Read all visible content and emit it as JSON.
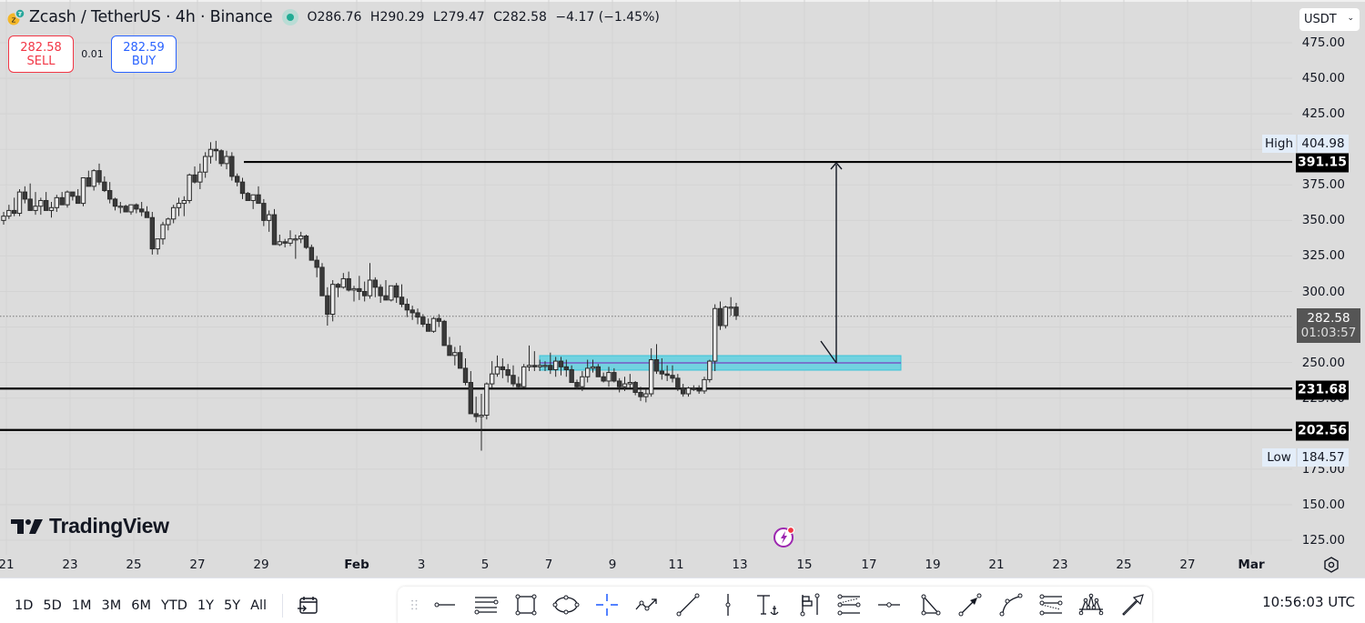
{
  "header": {
    "symbol_title": "Zcash / TetherUS · 4h · Binance",
    "ohlc": {
      "open": "O286.76",
      "high": "H290.29",
      "low": "L279.47",
      "close": "C282.58",
      "change": "−4.17 (−1.45%)"
    },
    "status_color": "#22ab94"
  },
  "trade": {
    "sell_price": "282.58",
    "sell_label": "SELL",
    "spread": "0.01",
    "buy_price": "282.59",
    "buy_label": "BUY",
    "sell_color": "#f23645",
    "buy_color": "#2962ff"
  },
  "price_axis": {
    "currency": "USDT",
    "ticks": [
      "475.00",
      "450.00",
      "425.00",
      "375.00",
      "350.00",
      "325.00",
      "300.00",
      "250.00",
      "225.00",
      "175.00",
      "150.00",
      "125.00"
    ],
    "high_label": "High",
    "high_value": "404.98",
    "low_label": "Low",
    "low_value": "184.57",
    "current_price": "282.58",
    "countdown": "01:03:57",
    "horizontal_lines": [
      "391.15",
      "231.68",
      "202.56"
    ]
  },
  "time_axis": {
    "labels": [
      "21",
      "23",
      "25",
      "27",
      "29",
      "Feb",
      "3",
      "5",
      "7",
      "9",
      "11",
      "13",
      "15",
      "17",
      "19",
      "21",
      "23",
      "25",
      "27",
      "Mar"
    ]
  },
  "watermark": "TradingView",
  "bottom_bar": {
    "ranges": [
      "1D",
      "5D",
      "1M",
      "3M",
      "6M",
      "YTD",
      "1Y",
      "5Y",
      "All"
    ],
    "clock": "10:56:03 UTC"
  },
  "drawing_tools": [
    "drag-handle",
    "horizontal-ray",
    "parallel-channel",
    "rectangle",
    "ellipse",
    "crosshair",
    "path",
    "trend-line",
    "vertical-line",
    "anchored-text",
    "flag-pin",
    "pin-line",
    "regression-trend",
    "horizontal-point",
    "triangle",
    "arrow-marker",
    "curve",
    "pitchfork-channel",
    "elliott-wave",
    "arrow"
  ],
  "chart_data": {
    "type": "candlestick",
    "title": "Zcash / TetherUS · 4h · Binance",
    "ylim": [
      125,
      475
    ],
    "annotations": {
      "resistance_line": 391.15,
      "support_line_1": 231.68,
      "support_line_2": 202.56,
      "demand_zone": [
        244,
        254
      ],
      "target_arrow_from": 250,
      "target_arrow_to": 391.15
    },
    "candles_ohlc": [
      [
        350,
        356,
        347,
        353
      ],
      [
        353,
        361,
        351,
        357
      ],
      [
        357,
        366,
        353,
        355
      ],
      [
        355,
        372,
        353,
        370
      ],
      [
        370,
        374,
        362,
        365
      ],
      [
        365,
        376,
        364,
        357
      ],
      [
        357,
        370,
        354,
        360
      ],
      [
        360,
        366,
        354,
        364
      ],
      [
        364,
        370,
        357,
        357
      ],
      [
        357,
        363,
        352,
        359
      ],
      [
        359,
        368,
        356,
        366
      ],
      [
        366,
        370,
        361,
        361
      ],
      [
        361,
        371,
        359,
        370
      ],
      [
        370,
        370,
        364,
        367
      ],
      [
        367,
        372,
        362,
        362
      ],
      [
        362,
        380,
        360,
        380
      ],
      [
        380,
        385,
        374,
        374
      ],
      [
        374,
        386,
        371,
        385
      ],
      [
        385,
        390,
        375,
        377
      ],
      [
        377,
        381,
        370,
        371
      ],
      [
        371,
        377,
        362,
        365
      ],
      [
        365,
        366,
        357,
        360
      ],
      [
        360,
        363,
        355,
        360
      ],
      [
        360,
        361,
        356,
        356
      ],
      [
        356,
        360,
        354,
        361
      ],
      [
        361,
        362,
        355,
        358
      ],
      [
        358,
        363,
        353,
        356
      ],
      [
        356,
        360,
        353,
        352
      ],
      [
        352,
        356,
        326,
        330
      ],
      [
        330,
        337,
        326,
        337
      ],
      [
        337,
        349,
        333,
        347
      ],
      [
        347,
        352,
        343,
        351
      ],
      [
        351,
        361,
        348,
        359
      ],
      [
        359,
        366,
        353,
        362
      ],
      [
        362,
        367,
        353,
        364
      ],
      [
        364,
        383,
        362,
        382
      ],
      [
        382,
        388,
        376,
        377
      ],
      [
        377,
        390,
        372,
        384
      ],
      [
        384,
        398,
        380,
        395
      ],
      [
        395,
        405,
        390,
        400
      ],
      [
        400,
        406,
        392,
        399
      ],
      [
        399,
        400,
        388,
        390
      ],
      [
        390,
        399,
        386,
        395
      ],
      [
        395,
        398,
        378,
        381
      ],
      [
        381,
        383,
        374,
        377
      ],
      [
        377,
        380,
        365,
        369
      ],
      [
        369,
        370,
        364,
        364
      ],
      [
        364,
        367,
        358,
        368
      ],
      [
        368,
        374,
        362,
        362
      ],
      [
        362,
        365,
        346,
        350
      ],
      [
        350,
        357,
        342,
        354
      ],
      [
        354,
        358,
        335,
        333
      ],
      [
        333,
        340,
        332,
        335
      ],
      [
        335,
        337,
        331,
        334
      ],
      [
        334,
        343,
        332,
        337
      ],
      [
        337,
        340,
        323,
        337
      ],
      [
        337,
        342,
        334,
        339
      ],
      [
        339,
        340,
        330,
        331
      ],
      [
        331,
        333,
        325,
        322
      ],
      [
        322,
        325,
        310,
        317
      ],
      [
        317,
        320,
        298,
        297
      ],
      [
        297,
        303,
        276,
        284
      ],
      [
        284,
        308,
        279,
        305
      ],
      [
        305,
        306,
        296,
        303
      ],
      [
        303,
        313,
        302,
        309
      ],
      [
        309,
        314,
        300,
        301
      ],
      [
        301,
        304,
        293,
        302
      ],
      [
        302,
        311,
        294,
        300
      ],
      [
        300,
        307,
        293,
        297
      ],
      [
        297,
        320,
        295,
        308
      ],
      [
        308,
        310,
        296,
        303
      ],
      [
        303,
        305,
        292,
        297
      ],
      [
        297,
        308,
        294,
        294
      ],
      [
        294,
        304,
        293,
        304
      ],
      [
        304,
        306,
        292,
        296
      ],
      [
        296,
        305,
        289,
        291
      ],
      [
        291,
        295,
        282,
        287
      ],
      [
        287,
        290,
        280,
        285
      ],
      [
        285,
        288,
        277,
        282
      ],
      [
        282,
        284,
        275,
        277
      ],
      [
        277,
        281,
        272,
        272
      ],
      [
        272,
        282,
        271,
        281
      ],
      [
        281,
        284,
        275,
        279
      ],
      [
        279,
        280,
        267,
        262
      ],
      [
        262,
        268,
        256,
        255
      ],
      [
        255,
        261,
        248,
        257
      ],
      [
        257,
        262,
        247,
        246
      ],
      [
        246,
        253,
        234,
        236
      ],
      [
        236,
        244,
        214,
        214
      ],
      [
        214,
        226,
        208,
        212
      ],
      [
        212,
        228,
        188,
        213
      ],
      [
        213,
        236,
        210,
        235
      ],
      [
        235,
        251,
        232,
        242
      ],
      [
        242,
        255,
        240,
        247
      ],
      [
        247,
        253,
        239,
        245
      ],
      [
        245,
        249,
        236,
        241
      ],
      [
        241,
        248,
        233,
        235
      ],
      [
        235,
        240,
        232,
        233
      ],
      [
        233,
        249,
        232,
        247
      ],
      [
        247,
        262,
        244,
        248
      ],
      [
        248,
        258,
        244,
        247
      ],
      [
        247,
        252,
        244,
        248
      ],
      [
        248,
        251,
        244,
        248
      ],
      [
        248,
        257,
        242,
        245
      ],
      [
        245,
        254,
        240,
        251
      ],
      [
        251,
        254,
        241,
        247
      ],
      [
        247,
        252,
        240,
        245
      ],
      [
        245,
        248,
        236,
        236
      ],
      [
        236,
        238,
        231,
        233
      ],
      [
        233,
        244,
        230,
        240
      ],
      [
        240,
        252,
        236,
        246
      ],
      [
        246,
        252,
        243,
        247
      ],
      [
        247,
        249,
        240,
        240
      ],
      [
        240,
        243,
        236,
        237
      ],
      [
        237,
        247,
        233,
        243
      ],
      [
        243,
        246,
        236,
        237
      ],
      [
        237,
        239,
        229,
        233
      ],
      [
        233,
        240,
        230,
        235
      ],
      [
        235,
        242,
        232,
        236
      ],
      [
        236,
        237,
        227,
        229
      ],
      [
        229,
        233,
        223,
        226
      ],
      [
        226,
        232,
        222,
        228
      ],
      [
        228,
        260,
        226,
        252
      ],
      [
        252,
        263,
        242,
        244
      ],
      [
        244,
        253,
        238,
        242
      ],
      [
        242,
        248,
        237,
        241
      ],
      [
        241,
        248,
        236,
        239
      ],
      [
        239,
        242,
        230,
        232
      ],
      [
        232,
        235,
        226,
        228
      ],
      [
        228,
        233,
        226,
        232
      ],
      [
        232,
        234,
        230,
        231
      ],
      [
        231,
        234,
        228,
        230
      ],
      [
        230,
        240,
        228,
        238
      ],
      [
        238,
        252,
        236,
        251
      ],
      [
        251,
        291,
        244,
        288
      ],
      [
        288,
        293,
        273,
        276
      ],
      [
        276,
        290,
        274,
        289
      ],
      [
        289,
        296,
        283,
        289
      ],
      [
        289,
        292,
        280,
        283
      ]
    ]
  }
}
